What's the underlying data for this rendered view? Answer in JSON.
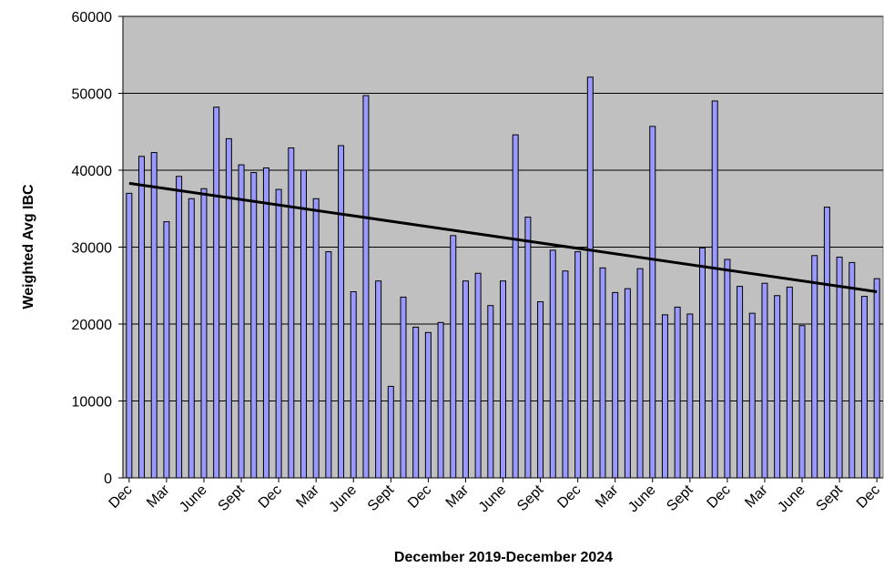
{
  "chart_data": {
    "type": "bar",
    "x_label": "December 2019-December 2024",
    "y_label": "Weighted Avg IBC",
    "categories": [
      "Dec",
      null,
      null,
      "Mar",
      null,
      null,
      "June",
      null,
      null,
      "Sept",
      null,
      null,
      "Dec",
      null,
      null,
      "Mar",
      null,
      null,
      "June",
      null,
      null,
      "Sept",
      null,
      null,
      "Dec",
      null,
      null,
      "Mar",
      null,
      null,
      "June",
      null,
      null,
      "Sept",
      null,
      null,
      "Dec",
      null,
      null,
      "Mar",
      null,
      null,
      "June",
      null,
      null,
      "Sept",
      null,
      null,
      "Dec",
      null,
      null,
      "Mar",
      null,
      null,
      "June",
      null,
      null,
      "Sept",
      null,
      null,
      "Dec"
    ],
    "values": [
      37000,
      41800,
      42300,
      33300,
      39200,
      36300,
      37600,
      48200,
      44100,
      40700,
      39700,
      40300,
      37500,
      42900,
      40000,
      36300,
      29400,
      43200,
      24200,
      49700,
      25600,
      11900,
      23500,
      19600,
      18900,
      20200,
      31500,
      25600,
      26600,
      22400,
      25600,
      44600,
      33900,
      22900,
      29600,
      26900,
      29400,
      52100,
      27300,
      24100,
      24600,
      27200,
      45700,
      21200,
      22200,
      21300,
      29900,
      49000,
      28400,
      24900,
      21400,
      25300,
      23700,
      24800,
      19800,
      28900,
      35200,
      28700,
      28000,
      23600,
      25900
    ],
    "color": "#9999ff",
    "trendline": {
      "start": 38300,
      "end": 24200,
      "color": "#000000"
    },
    "ylim": [
      0,
      60000
    ],
    "yticks": [
      0,
      10000,
      20000,
      30000,
      40000,
      50000,
      60000
    ],
    "grid": true
  }
}
